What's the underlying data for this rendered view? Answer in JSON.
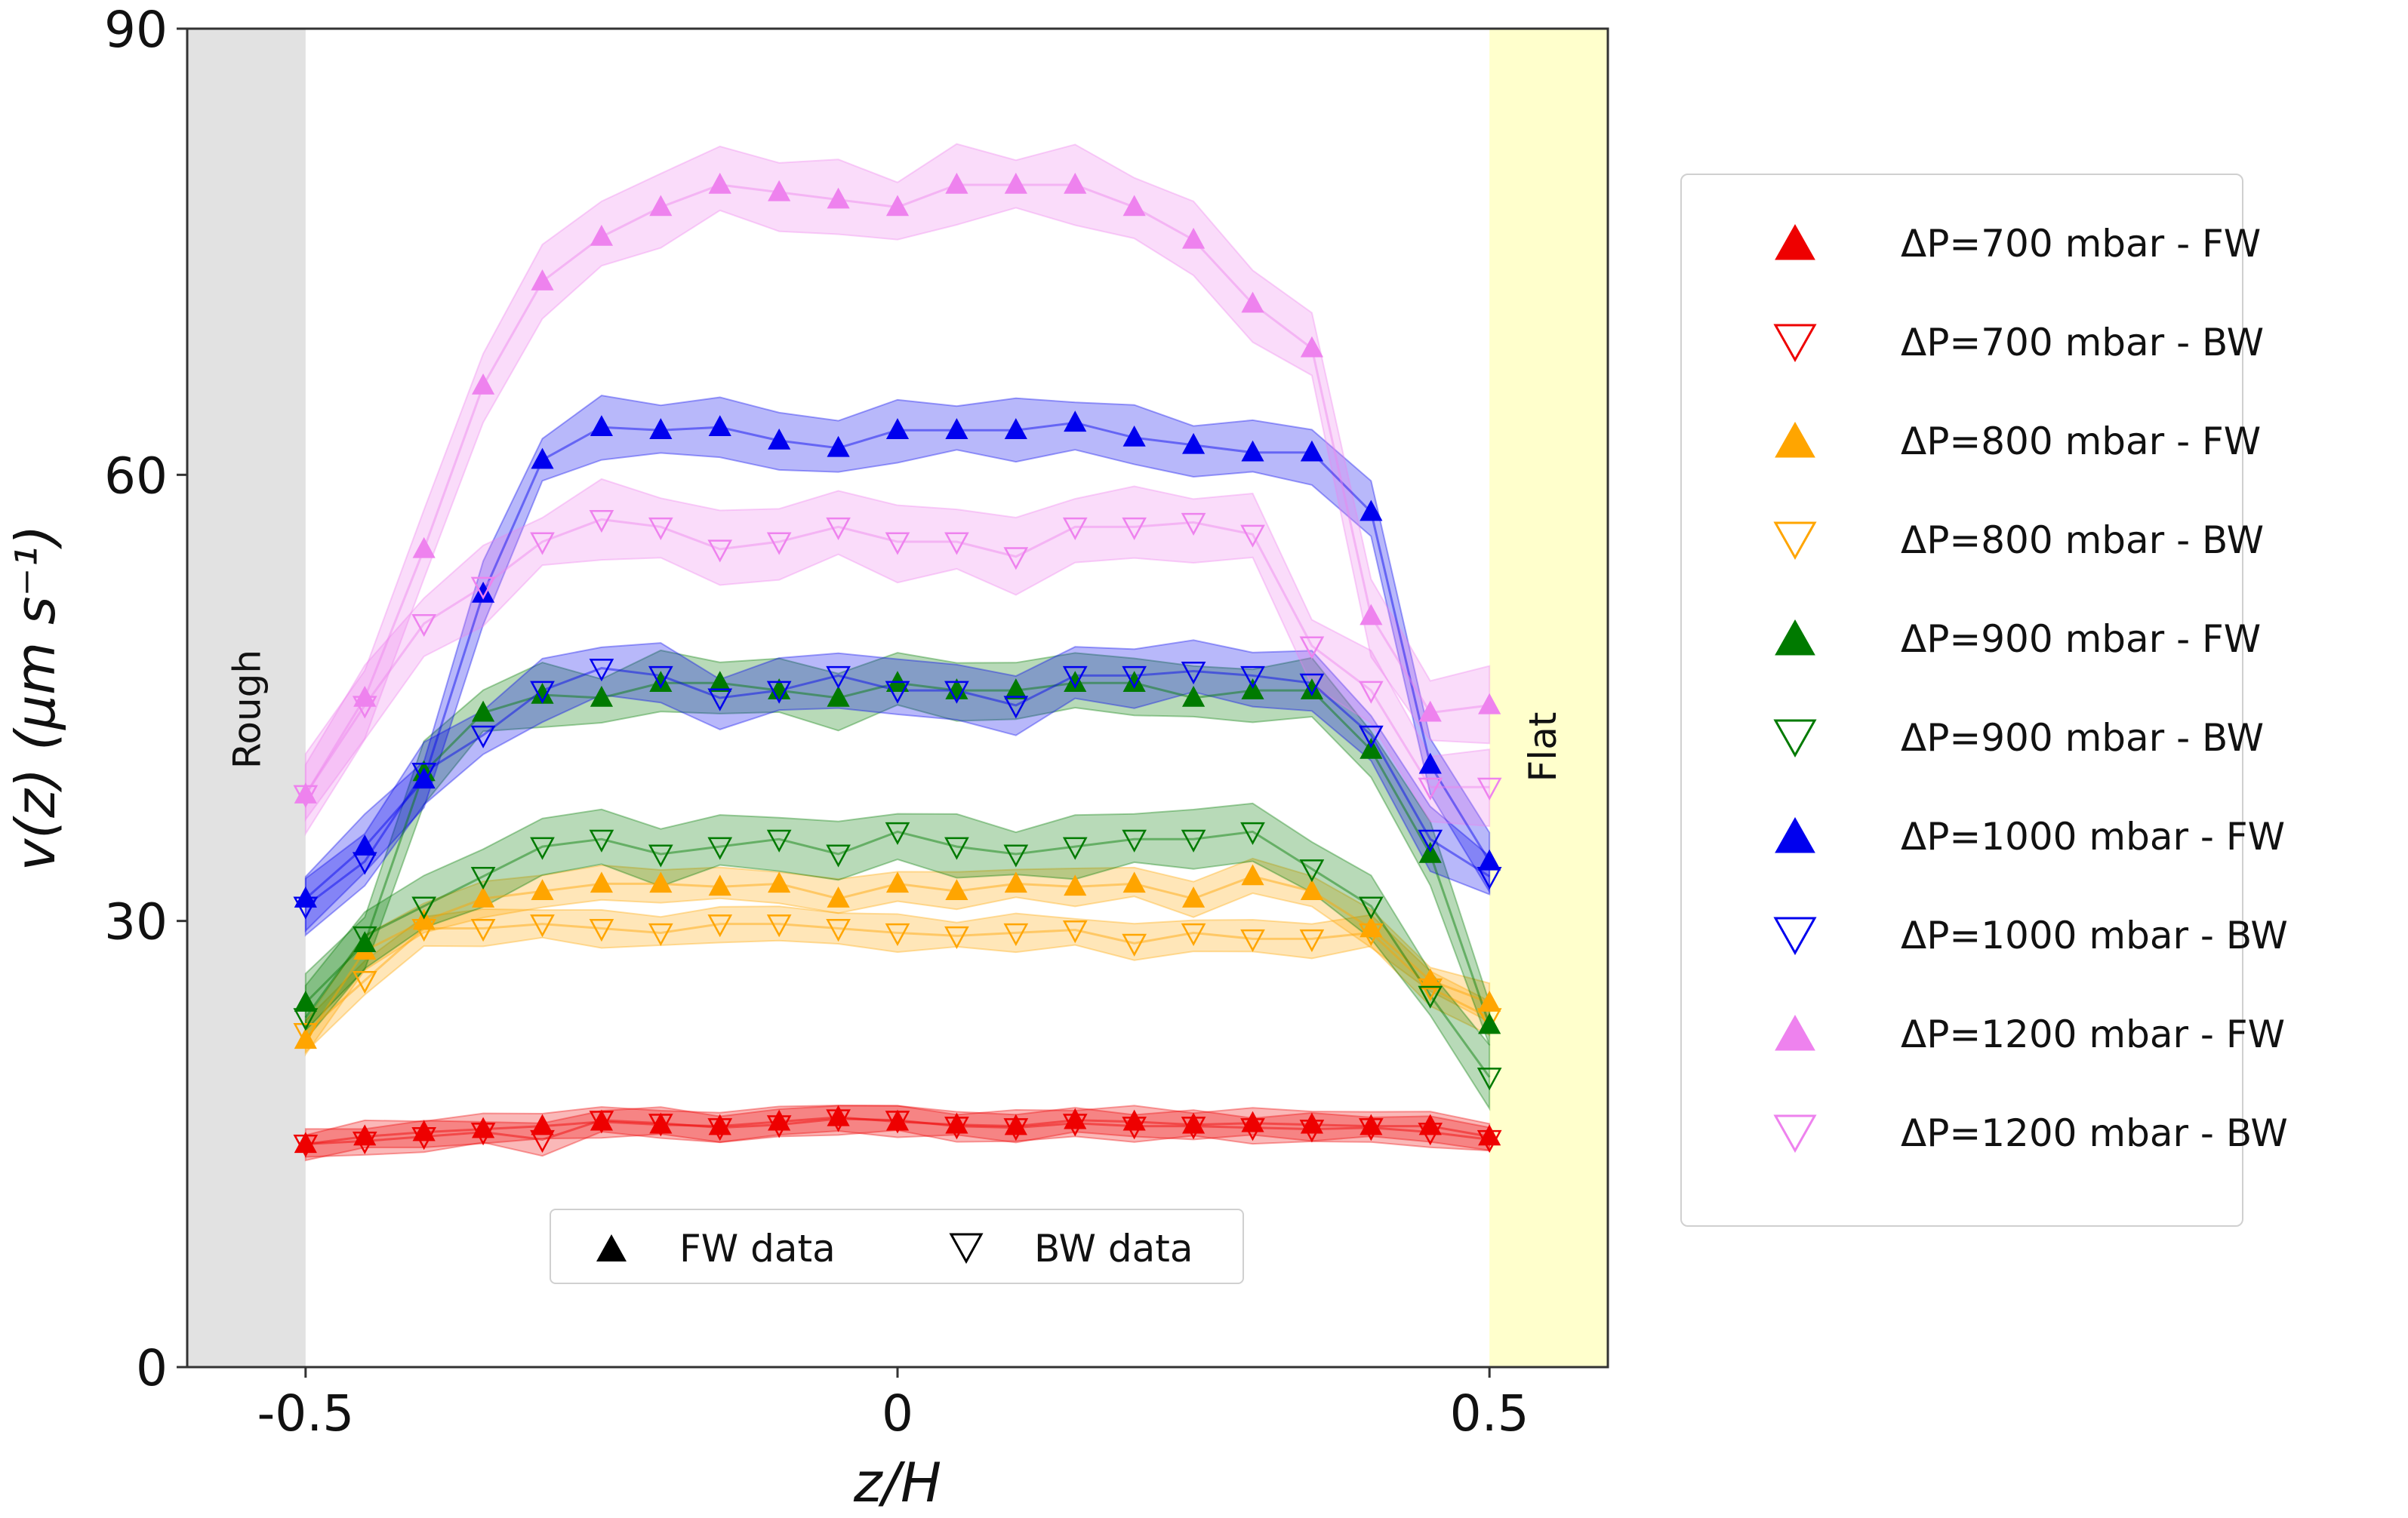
{
  "chart_data": {
    "type": "line",
    "xlabel": "z/H",
    "ylabel": "v(z)  (μm s⁻¹)",
    "xlim": [
      -0.6,
      0.6
    ],
    "ylim": [
      0,
      90
    ],
    "xticks": [
      -0.5,
      0,
      0.5
    ],
    "xtick_labels": [
      "-0.5",
      "0",
      "0.5"
    ],
    "yticks": [
      0,
      30,
      60,
      90
    ],
    "ytick_labels": [
      "0",
      "30",
      "60",
      "90"
    ],
    "regions": [
      {
        "label": "Rough",
        "from": -0.6,
        "to": -0.5,
        "color": "#e2e2e2"
      },
      {
        "label": "Flat",
        "from": 0.5,
        "to": 0.6,
        "color": "#ffffcc"
      }
    ],
    "x": [
      -0.5,
      -0.45,
      -0.4,
      -0.35,
      -0.3,
      -0.25,
      -0.2,
      -0.15,
      -0.1,
      -0.05,
      0,
      0.05,
      0.1,
      0.15,
      0.2,
      0.25,
      0.3,
      0.35,
      0.4,
      0.45,
      0.5
    ],
    "series": [
      {
        "name": "ΔP=700 mbar - FW",
        "color": "#ee0000",
        "marker": "up",
        "filled": true,
        "band": 1.0,
        "values": [
          15,
          15.5,
          15.8,
          16,
          16.2,
          16.5,
          16.3,
          16.2,
          16.5,
          16.8,
          16.5,
          16.3,
          16.2,
          16.6,
          16.5,
          16.3,
          16.4,
          16.3,
          16.2,
          16.2,
          15.5
        ]
      },
      {
        "name": "ΔP=700 mbar - BW",
        "color": "#ee0000",
        "marker": "down",
        "filled": false,
        "band": 1.0,
        "values": [
          15,
          15.2,
          15.5,
          15.8,
          15.3,
          16.6,
          16.4,
          16.1,
          16.3,
          16.7,
          16.6,
          16.2,
          16.1,
          16.4,
          16.2,
          16.2,
          16.1,
          16.0,
          16.1,
          15.8,
          15.3
        ]
      },
      {
        "name": "ΔP=800 mbar - FW",
        "color": "#ffa500",
        "marker": "up",
        "filled": true,
        "band": 1.2,
        "values": [
          22,
          28,
          30,
          31.5,
          32,
          32.5,
          32.5,
          32.3,
          32.5,
          31.5,
          32.5,
          32,
          32.5,
          32.3,
          32.5,
          31.5,
          33,
          32,
          29.5,
          26,
          24.5
        ]
      },
      {
        "name": "ΔP=800 mbar - BW",
        "color": "#ffa500",
        "marker": "down",
        "filled": false,
        "band": 1.2,
        "values": [
          22.5,
          26,
          29.5,
          29.5,
          29.8,
          29.5,
          29.2,
          29.8,
          29.8,
          29.5,
          29.2,
          29.0,
          29.2,
          29.4,
          28.5,
          29.2,
          28.8,
          28.8,
          29.2,
          25.5,
          23.5
        ]
      },
      {
        "name": "ΔP=900 mbar - FW",
        "color": "#007a00",
        "marker": "up",
        "filled": true,
        "band": 2.0,
        "values": [
          24.5,
          28.5,
          40,
          44,
          45.2,
          45,
          46,
          46,
          45.5,
          45,
          46,
          45.5,
          45.5,
          46,
          46,
          45,
          45.5,
          45.5,
          41.5,
          34.5,
          23
        ]
      },
      {
        "name": "ΔP=900 mbar - BW",
        "color": "#007a00",
        "marker": "down",
        "filled": false,
        "band": 2.0,
        "values": [
          23.5,
          29,
          31,
          33,
          35,
          35.5,
          34.5,
          35,
          35.5,
          34.5,
          36,
          35,
          34.5,
          35,
          35.5,
          35.5,
          36,
          33.5,
          31,
          25,
          19.5
        ]
      },
      {
        "name": "ΔP=1000 mbar - FW",
        "color": "#0000ee",
        "marker": "up",
        "filled": true,
        "band": 2.0,
        "values": [
          31.5,
          35,
          39.5,
          52,
          61,
          63.2,
          63,
          63.2,
          62.3,
          61.8,
          63,
          63,
          63,
          63.5,
          62.5,
          62,
          61.5,
          61.5,
          57.5,
          40.5,
          34
        ]
      },
      {
        "name": "ΔP=1000 mbar - BW",
        "color": "#0000ee",
        "marker": "down",
        "filled": false,
        "band": 2.0,
        "values": [
          31,
          34,
          40,
          42.5,
          45.5,
          47,
          46.5,
          45,
          45.5,
          46.5,
          45.5,
          45.5,
          44.5,
          46.5,
          46.5,
          46.8,
          46.5,
          46,
          42.5,
          35.5,
          33
        ]
      },
      {
        "name": "ΔP=1200 mbar - FW",
        "color": "#ee82ee",
        "marker": "up",
        "filled": true,
        "band": 2.5,
        "values": [
          38.5,
          45,
          55,
          66,
          73,
          76,
          78,
          79.5,
          79,
          78.5,
          78,
          79.5,
          79.5,
          79.5,
          78,
          75.8,
          71.5,
          68.5,
          50.5,
          44,
          44.5
        ]
      },
      {
        "name": "ΔP=1200 mbar - BW",
        "color": "#ee82ee",
        "marker": "down",
        "filled": false,
        "band": 2.5,
        "values": [
          38.5,
          44.5,
          50,
          52.5,
          55.5,
          57,
          56.5,
          55,
          55.5,
          56.5,
          55.5,
          55.5,
          54.5,
          56.5,
          56.5,
          56.8,
          56,
          48.5,
          45.5,
          39,
          39
        ]
      }
    ]
  },
  "marker_legend": {
    "fw_label": "FW data",
    "bw_label": "BW data"
  }
}
